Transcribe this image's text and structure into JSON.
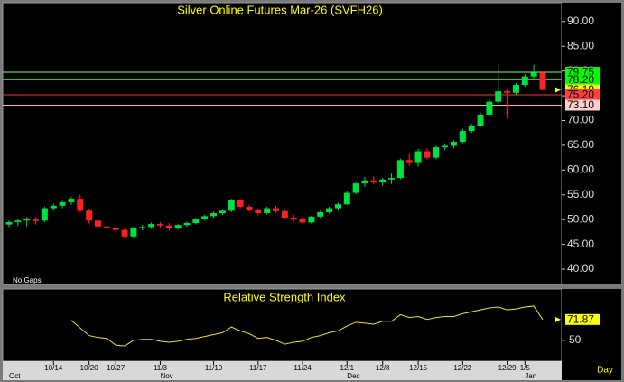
{
  "chart_data": [
    {
      "type": "candlestick",
      "title": "Silver Online Futures Mar-26 (SVFH26)",
      "annotation": "No Gaps",
      "up_color": "#00e040",
      "down_color": "#ff2020",
      "categories": [
        null,
        null,
        null,
        null,
        null,
        "10/14",
        null,
        null,
        null,
        "10/20",
        null,
        null,
        "10/27",
        null,
        null,
        null,
        null,
        "11/3",
        null,
        null,
        null,
        null,
        null,
        "11/10",
        null,
        null,
        null,
        null,
        "11/17",
        null,
        null,
        null,
        null,
        "11/24",
        null,
        null,
        null,
        null,
        "12/1",
        null,
        null,
        null,
        "12/8",
        null,
        null,
        null,
        "12/15",
        null,
        null,
        null,
        null,
        "12/22",
        null,
        null,
        null,
        null,
        "12/29",
        null,
        "1/5",
        null,
        null
      ],
      "month_labels": [
        "Oct",
        null,
        null,
        null,
        null,
        null,
        null,
        null,
        null,
        null,
        null,
        null,
        null,
        null,
        null,
        null,
        null,
        "Nov",
        null,
        null,
        null,
        null,
        null,
        null,
        null,
        null,
        null,
        null,
        null,
        null,
        null,
        null,
        null,
        null,
        null,
        null,
        null,
        null,
        "Dec",
        null,
        null,
        null,
        null,
        null,
        null,
        null,
        null,
        null,
        null,
        null,
        null,
        null,
        null,
        null,
        null,
        null,
        null,
        null,
        "Jan",
        null,
        null
      ],
      "open": [
        49,
        49.5,
        49.8,
        50,
        49.8,
        52.3,
        52.8,
        53.5,
        54.2,
        51.8,
        49.8,
        48.6,
        48.4,
        47.9,
        46.6,
        48.2,
        48.5,
        49.1,
        48.8,
        48.3,
        48.9,
        49.3,
        50.1,
        50.7,
        51.3,
        51.8,
        53.9,
        52.6,
        51.9,
        51.3,
        52.3,
        51.7,
        50.4,
        50.2,
        49.4,
        50.6,
        51.5,
        52.3,
        53.1,
        55.4,
        57.3,
        57.9,
        57.5,
        58.1,
        58.4,
        62,
        61.6,
        63.8,
        62.5,
        64.6,
        64.9,
        65.7,
        67.9,
        69,
        71.2,
        73.8,
        75.9,
        75.6,
        77.2,
        78.9,
        79.7
      ],
      "high": [
        49.8,
        50.2,
        50.5,
        50.5,
        52.6,
        53.2,
        53.8,
        54.6,
        55,
        52.2,
        50.5,
        49.3,
        48.8,
        48.3,
        48.5,
        48.9,
        49.4,
        49.5,
        49.3,
        49.1,
        49.6,
        50.3,
        51,
        51.6,
        52.1,
        54.2,
        54.2,
        53,
        52.3,
        52.6,
        52.8,
        52.1,
        51,
        50.6,
        50.8,
        51.8,
        52.6,
        53.4,
        55.7,
        57.6,
        58.6,
        58.8,
        58.4,
        59.3,
        62.3,
        63.2,
        64.3,
        64.4,
        64.9,
        65.4,
        66,
        68.3,
        69.3,
        71.6,
        74.3,
        81.5,
        76.4,
        77.6,
        79.4,
        81.3,
        79.9
      ],
      "low": [
        48.5,
        48.7,
        48.6,
        49,
        49.5,
        51.8,
        52.3,
        53,
        51.5,
        49.2,
        48.2,
        47.8,
        47.3,
        46.2,
        46.2,
        47.8,
        48.1,
        48.4,
        47.8,
        48,
        48.5,
        49,
        49.8,
        50.4,
        50.9,
        51.5,
        52.3,
        51.6,
        50.8,
        51,
        51.4,
        50.1,
        49.6,
        49.1,
        49.2,
        50.3,
        51.2,
        52,
        52.9,
        55.1,
        56.6,
        57.1,
        56.8,
        57.2,
        58.1,
        60.8,
        60.7,
        62.1,
        62.2,
        64,
        64.4,
        65.4,
        67.5,
        68.7,
        70.9,
        73.2,
        70.4,
        75.2,
        76.8,
        78.4,
        76.1
      ],
      "close": [
        49.5,
        49.8,
        50.2,
        49.7,
        52.3,
        52.8,
        53.5,
        54.2,
        51.8,
        49.8,
        48.6,
        48.4,
        47.9,
        46.6,
        48.2,
        48.5,
        49.1,
        48.8,
        48.3,
        48.9,
        49.3,
        50.1,
        50.7,
        51.3,
        51.8,
        53.9,
        52.6,
        51.9,
        51.3,
        52.3,
        51.7,
        50.4,
        50.2,
        49.4,
        50.6,
        51.5,
        52.3,
        53.1,
        55.4,
        57.3,
        57.9,
        57.5,
        58.1,
        58.4,
        62,
        61.6,
        63.8,
        62.5,
        64.6,
        64.9,
        65.7,
        67.9,
        69,
        71.2,
        73.8,
        75.9,
        75.6,
        77.2,
        78.9,
        79.7,
        76.19
      ],
      "ylim": [
        36.9,
        93.8
      ],
      "yticks": [
        {
          "value": 40,
          "label": "40.00"
        },
        {
          "value": 45,
          "label": "45.00"
        },
        {
          "value": 50,
          "label": "50.00"
        },
        {
          "value": 55,
          "label": "55.00"
        },
        {
          "value": 60,
          "label": "60.00"
        },
        {
          "value": 65,
          "label": "65.00"
        },
        {
          "value": 70,
          "label": "70.00"
        },
        {
          "value": 75,
          "label": "75.00"
        },
        {
          "value": 80,
          "label": "80.00"
        },
        {
          "value": 85,
          "label": "85.00"
        },
        {
          "value": 90,
          "label": "90.00"
        }
      ],
      "levels": [
        {
          "value": 79.75,
          "label": "79.75",
          "color": "#7cff5a",
          "box": "#00ff00",
          "line": true
        },
        {
          "value": 78.2,
          "label": "78.20",
          "color": "#22cc22",
          "box": "#00ff00",
          "line": true
        },
        {
          "value": 76.19,
          "label": "76.19",
          "color": "#ffff00",
          "box": "#ffff00",
          "line": false
        },
        {
          "value": 75.2,
          "label": "75.20",
          "color": "#ff3030",
          "box": "#ff4040",
          "line": true
        },
        {
          "value": 73.1,
          "label": "73.10",
          "color": "#ffb0b0",
          "box": "#ffd0d0",
          "line": true
        }
      ]
    },
    {
      "type": "line",
      "title": "Relative Strength Index",
      "x_label": "Day",
      "color": "#e8e820",
      "values": [
        null,
        null,
        null,
        null,
        null,
        null,
        null,
        71,
        63,
        55,
        53,
        52,
        45,
        44,
        50,
        51,
        51,
        49,
        48,
        49,
        51,
        52,
        54,
        56,
        58,
        64,
        60,
        57,
        52,
        53,
        50,
        46,
        48,
        49,
        53,
        55,
        58,
        60,
        65,
        69,
        68,
        67,
        70,
        70,
        77,
        74,
        75,
        72,
        74,
        75,
        75,
        78,
        80,
        82,
        84,
        85,
        82,
        83,
        85,
        86,
        71.87
      ],
      "ylim": [
        28,
        104
      ],
      "yticks": [
        50
      ]
    }
  ]
}
